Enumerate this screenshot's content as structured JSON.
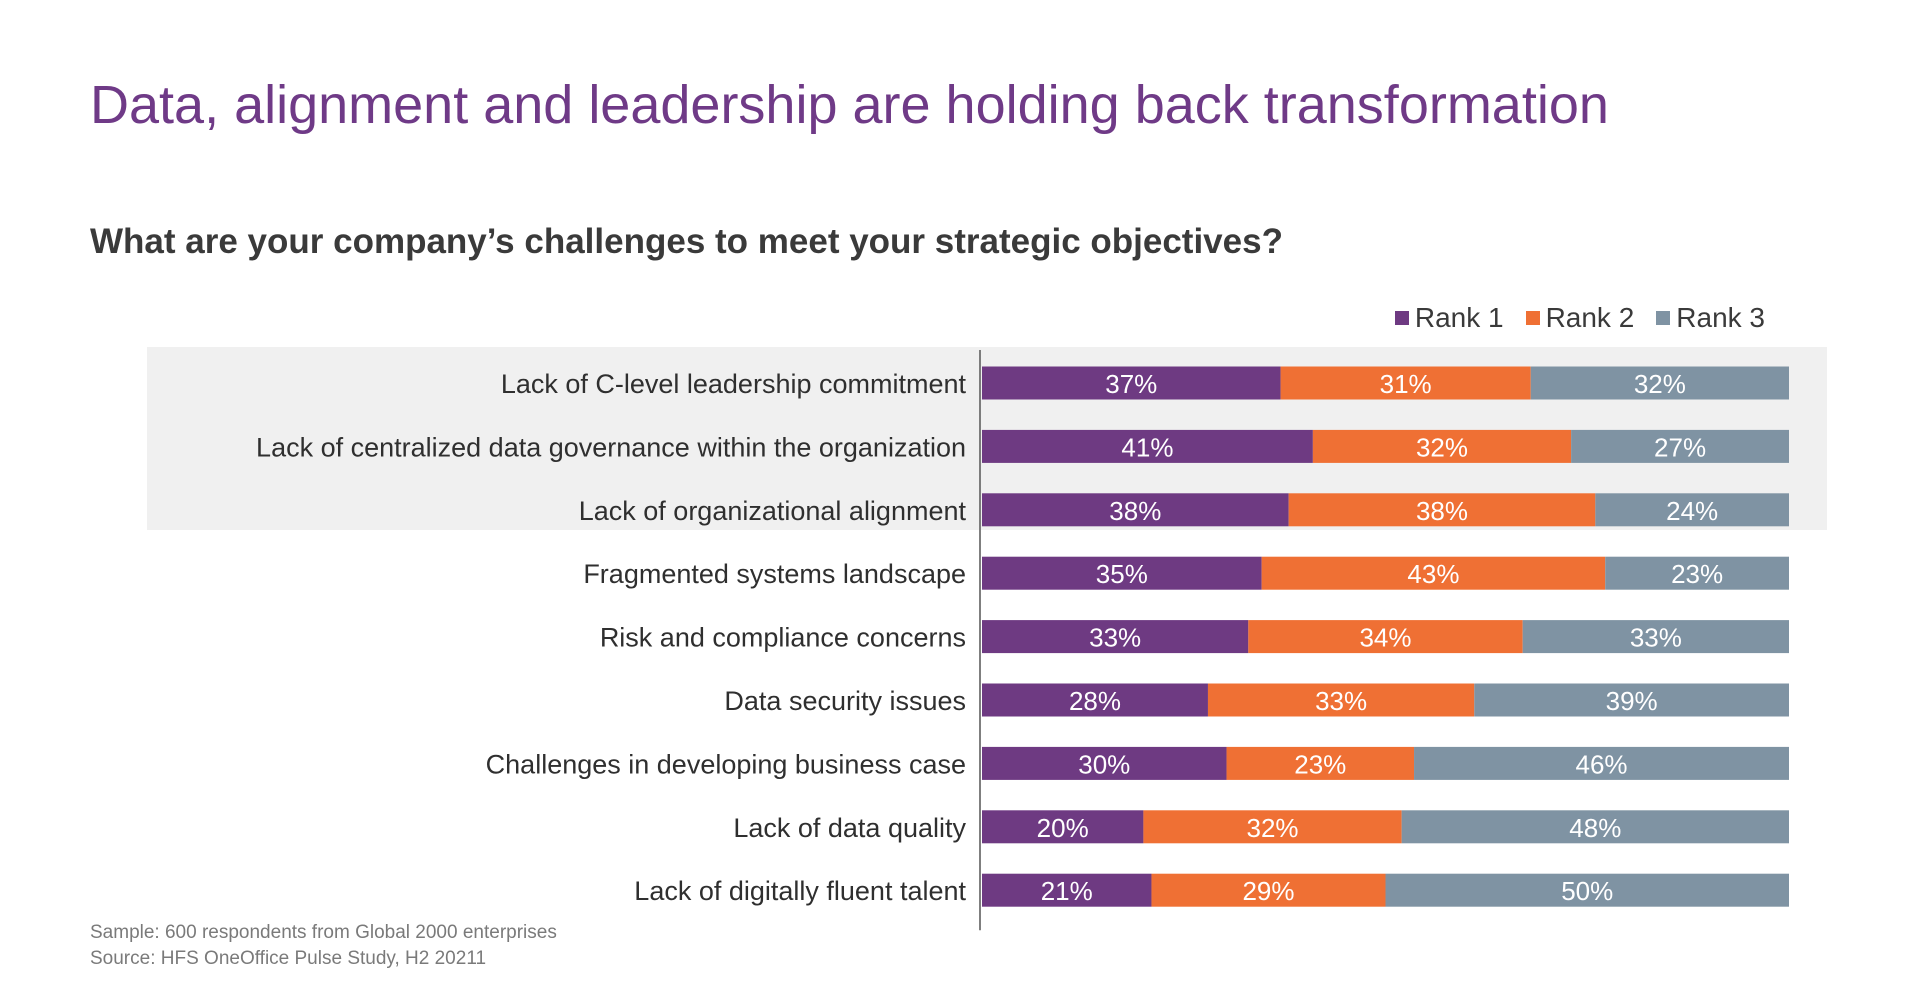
{
  "header": {
    "title": "Data, alignment and leadership are holding back transformation",
    "subtitle": "What are your company’s challenges to meet your strategic objectives?"
  },
  "legend": [
    {
      "label": "Rank 1",
      "color": "#6e3a82"
    },
    {
      "label": "Rank 2",
      "color": "#ef7034"
    },
    {
      "label": "Rank 3",
      "color": "#7f93a3"
    }
  ],
  "footnotes": {
    "sample": "Sample: 600 respondents from Global 2000 enterprises",
    "source": "Source: HFS OneOffice Pulse Study, H2 20211"
  },
  "chart_data": {
    "type": "bar",
    "orientation": "horizontal",
    "stacked": true,
    "categories": [
      "Lack of C-level leadership commitment",
      "Lack of centralized data governance within the organization",
      "Lack of organizational alignment",
      "Fragmented systems landscape",
      "Risk and compliance concerns",
      "Data security issues",
      "Challenges in developing business case",
      "Lack of data quality",
      "Lack of digitally fluent talent"
    ],
    "series": [
      {
        "name": "Rank 1",
        "values": [
          37,
          41,
          38,
          35,
          33,
          28,
          30,
          20,
          21
        ]
      },
      {
        "name": "Rank 2",
        "values": [
          31,
          32,
          38,
          43,
          34,
          33,
          23,
          32,
          29
        ]
      },
      {
        "name": "Rank 3",
        "values": [
          32,
          27,
          24,
          23,
          33,
          39,
          46,
          48,
          50
        ]
      }
    ],
    "value_suffix": "%",
    "highlighted_categories": [
      0,
      1,
      2
    ],
    "legend_position": "top-right",
    "grid": false
  }
}
